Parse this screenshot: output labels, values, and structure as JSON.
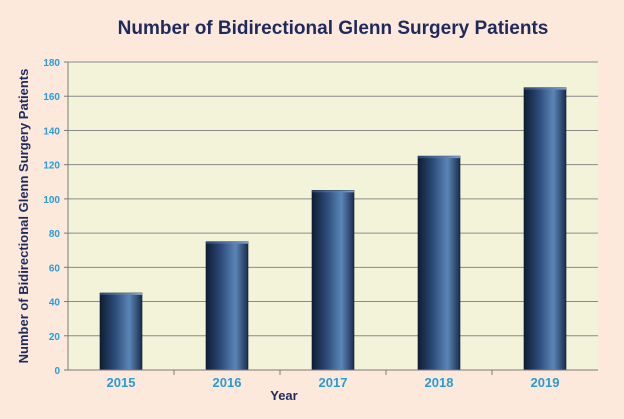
{
  "chart_data": {
    "type": "bar",
    "title": "Number of Bidirectional Glenn Surgery Patients",
    "xlabel": "Year",
    "ylabel": "Number of Bidirectional Glenn Surgery Patients",
    "categories": [
      "2015",
      "2016",
      "2017",
      "2018",
      "2019"
    ],
    "values": [
      45,
      75,
      105,
      125,
      165
    ],
    "ylim": [
      0,
      180
    ],
    "yticks": [
      "0",
      "20",
      "40",
      "60",
      "80",
      "100",
      "120",
      "140",
      "160",
      "180"
    ],
    "grid": true,
    "colors": {
      "plot_background": "#f2f3d9",
      "page_background": "#fde9dc",
      "bar_dark": "#0f1d33",
      "bar_light": "#5b86b8",
      "tick_label": "#2a9bd6",
      "title": "#1f2a5c",
      "gridline": "#8a8a8a"
    }
  }
}
